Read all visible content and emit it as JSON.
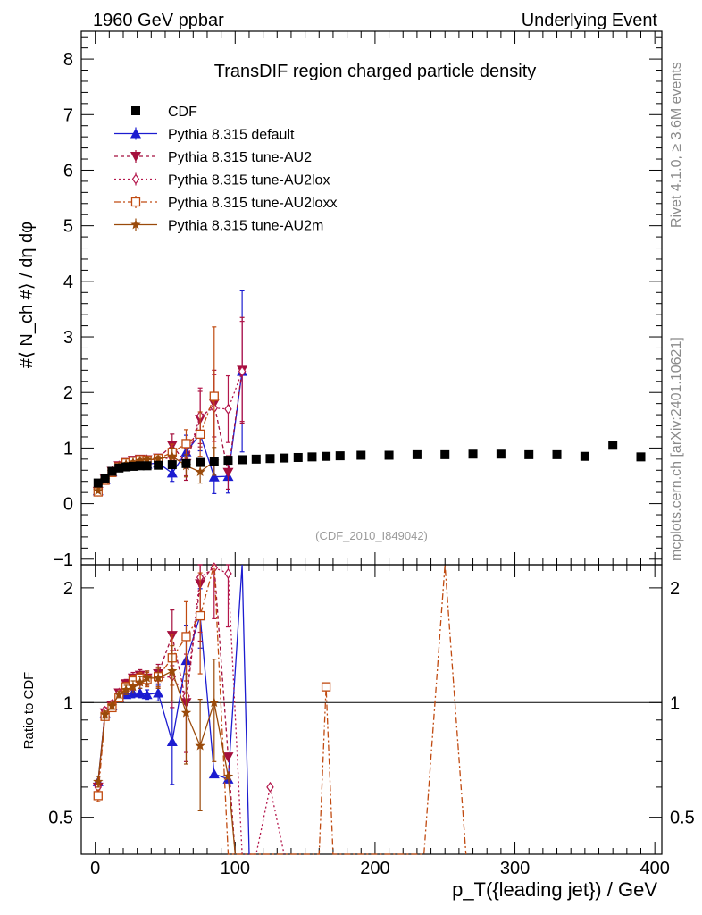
{
  "header": {
    "left": "1960 GeV ppbar",
    "right": "Underlying Event"
  },
  "side_labels": {
    "rivet": "Rivet 4.1.0, ≥ 3.6M events",
    "mcplots": "mcplots.cern.ch [arXiv:2401.10621]"
  },
  "chart_data": {
    "type": "line",
    "title": "TransDIF region charged particle density",
    "watermark": "(CDF_2010_I849042)",
    "xlabel": "p_T({leading jet}) / GeV",
    "ylabel_main": "#⟨ N_ch #⟩ / dη dφ",
    "ylabel_ratio": "Ratio to CDF",
    "xlim": [
      -10,
      405
    ],
    "ylim_main": [
      -1.1,
      8.5
    ],
    "ylim_ratio": [
      0.4,
      2.3
    ],
    "x_ticks": [
      "0",
      "100",
      "200",
      "300",
      "400"
    ],
    "y_ticks_main": [
      "−1",
      "0",
      "1",
      "2",
      "3",
      "4",
      "5",
      "6",
      "7",
      "8"
    ],
    "y_ticks_ratio": [
      "0.5",
      "1",
      "2"
    ],
    "legend": [
      {
        "key": "cdf",
        "label": "CDF"
      },
      {
        "key": "default",
        "label": "Pythia 8.315 default"
      },
      {
        "key": "au2",
        "label": "Pythia 8.315 tune-AU2"
      },
      {
        "key": "au2lox",
        "label": "Pythia 8.315 tune-AU2lox"
      },
      {
        "key": "au2loxx",
        "label": "Pythia 8.315 tune-AU2loxx"
      },
      {
        "key": "au2m",
        "label": "Pythia 8.315 tune-AU2m"
      }
    ],
    "data": {
      "x": [
        2,
        7,
        12,
        17,
        22,
        27,
        32,
        37,
        45,
        55,
        65,
        75,
        85,
        95,
        105,
        115,
        125,
        135,
        145,
        155,
        165,
        175,
        190,
        210,
        230,
        250,
        270,
        290,
        310,
        330,
        350,
        370,
        390
      ],
      "y": [
        0.37,
        0.46,
        0.58,
        0.64,
        0.66,
        0.67,
        0.68,
        0.68,
        0.69,
        0.7,
        0.72,
        0.74,
        0.76,
        0.78,
        0.79,
        0.8,
        0.81,
        0.82,
        0.83,
        0.84,
        0.85,
        0.86,
        0.87,
        0.87,
        0.88,
        0.88,
        0.89,
        0.89,
        0.88,
        0.88,
        0.85,
        1.05,
        0.84
      ]
    },
    "series": [
      {
        "key": "default",
        "name": "Pythia 8.315 default",
        "color": "#1c1cd0",
        "marker": "tri-up",
        "dash": "",
        "x": [
          2,
          7,
          12,
          17,
          22,
          27,
          32,
          37,
          45,
          55,
          65,
          75,
          85,
          95,
          105
        ],
        "y": [
          0.23,
          0.43,
          0.57,
          0.66,
          0.69,
          0.71,
          0.72,
          0.71,
          0.73,
          0.55,
          0.93,
          1.25,
          0.48,
          0.49,
          2.38
        ],
        "err": [
          0.02,
          0.02,
          0.02,
          0.02,
          0.03,
          0.03,
          0.04,
          0.04,
          0.05,
          0.15,
          0.3,
          0.3,
          0.3,
          0.3,
          1.45
        ]
      },
      {
        "key": "au2",
        "name": "Pythia 8.315 tune-AU2",
        "color": "#a50f3d",
        "marker": "tri-down",
        "dash": "4,3",
        "x": [
          2,
          7,
          12,
          17,
          22,
          27,
          32,
          37,
          45,
          55,
          65,
          75,
          85,
          95,
          105
        ],
        "y": [
          0.22,
          0.44,
          0.58,
          0.68,
          0.74,
          0.78,
          0.8,
          0.79,
          0.82,
          1.05,
          0.72,
          1.52,
          1.8,
          0.56,
          2.4
        ],
        "err": [
          0.02,
          0.02,
          0.02,
          0.02,
          0.03,
          0.03,
          0.04,
          0.04,
          0.05,
          0.2,
          0.3,
          0.5,
          0.6,
          0.3,
          0.95
        ]
      },
      {
        "key": "au2lox",
        "name": "Pythia 8.315 tune-AU2lox",
        "color": "#b4174c",
        "marker": "diamond",
        "dash": "2,3",
        "x": [
          2,
          7,
          12,
          17,
          22,
          27,
          32,
          37,
          45,
          55,
          65,
          75,
          85,
          95,
          105
        ],
        "y": [
          0.23,
          0.44,
          0.58,
          0.68,
          0.72,
          0.75,
          0.78,
          0.79,
          0.8,
          0.82,
          0.75,
          1.58,
          1.72,
          1.7,
          2.38
        ],
        "err": [
          0.02,
          0.02,
          0.02,
          0.02,
          0.03,
          0.03,
          0.04,
          0.04,
          0.05,
          0.15,
          0.25,
          0.5,
          0.6,
          0.6,
          0.9
        ]
      },
      {
        "key": "au2loxx",
        "name": "Pythia 8.315 tune-AU2loxx",
        "color": "#c04a10",
        "marker": "square-open",
        "dash": "7,3,2,3",
        "x": [
          2,
          7,
          12,
          17,
          22,
          27,
          32,
          37,
          45,
          55,
          65,
          75,
          85
        ],
        "y": [
          0.21,
          0.42,
          0.56,
          0.66,
          0.73,
          0.76,
          0.79,
          0.78,
          0.81,
          0.92,
          1.08,
          1.25,
          1.93
        ],
        "err": [
          0.02,
          0.02,
          0.02,
          0.02,
          0.03,
          0.03,
          0.04,
          0.04,
          0.05,
          0.15,
          0.25,
          0.4,
          1.25
        ]
      },
      {
        "key": "au2m",
        "name": "Pythia 8.315 tune-AU2m",
        "color": "#9a4a0a",
        "marker": "star",
        "dash": "",
        "x": [
          2,
          7,
          12,
          17,
          22,
          27,
          32,
          37,
          45,
          55,
          65,
          75,
          85
        ],
        "y": [
          0.23,
          0.43,
          0.57,
          0.67,
          0.71,
          0.74,
          0.77,
          0.79,
          0.8,
          0.85,
          0.68,
          0.57,
          0.76
        ],
        "err": [
          0.02,
          0.02,
          0.02,
          0.02,
          0.03,
          0.03,
          0.04,
          0.04,
          0.05,
          0.15,
          0.2,
          0.2,
          0.25
        ]
      }
    ],
    "ratio_series": [
      {
        "key": "default",
        "x": [
          2,
          7,
          12,
          17,
          22,
          27,
          32,
          37,
          45,
          55,
          65,
          75,
          85,
          95,
          105,
          110
        ],
        "y": [
          0.62,
          0.94,
          0.98,
          1.03,
          1.05,
          1.06,
          1.06,
          1.05,
          1.06,
          0.79,
          1.29,
          1.69,
          0.65,
          0.63,
          2.4,
          0.3
        ],
        "err": [
          0.02,
          0.02,
          0.02,
          0.02,
          0.02,
          0.03,
          0.03,
          0.03,
          0.05,
          0.18,
          0.3,
          0.3,
          0,
          0,
          0,
          0
        ]
      },
      {
        "key": "au2",
        "x": [
          2,
          7,
          12,
          17,
          22,
          27,
          32,
          37,
          45,
          55,
          65,
          75,
          85,
          95,
          100
        ],
        "y": [
          0.6,
          0.94,
          0.98,
          1.06,
          1.12,
          1.16,
          1.18,
          1.16,
          1.19,
          1.5,
          1.0,
          2.05,
          2.37,
          0.72,
          0.3
        ],
        "err": [
          0.02,
          0.02,
          0.02,
          0.02,
          0.03,
          0.04,
          0.04,
          0.05,
          0.07,
          0.25,
          0.3,
          0.6,
          0.6,
          0,
          0
        ]
      },
      {
        "key": "au2lox",
        "x": [
          2,
          7,
          12,
          17,
          22,
          27,
          32,
          37,
          45,
          55,
          65,
          75,
          85,
          95,
          105,
          115,
          125,
          135
        ],
        "y": [
          0.6,
          0.95,
          0.99,
          1.06,
          1.09,
          1.12,
          1.15,
          1.16,
          1.16,
          1.17,
          1.04,
          2.13,
          2.26,
          2.18,
          0.3,
          0.3,
          0.6,
          0.3
        ],
        "err": [
          0.02,
          0.02,
          0.02,
          0.02,
          0.03,
          0.04,
          0.04,
          0.05,
          0.07,
          0.2,
          0.3,
          0.6,
          0.6,
          0.6,
          0,
          0,
          0,
          0
        ]
      },
      {
        "key": "au2loxx",
        "x": [
          2,
          7,
          12,
          17,
          22,
          27,
          32,
          37,
          45,
          55,
          65,
          75,
          85,
          95,
          160,
          165,
          170,
          235,
          250,
          265
        ],
        "y": [
          0.57,
          0.92,
          0.97,
          1.03,
          1.1,
          1.14,
          1.16,
          1.15,
          1.17,
          1.31,
          1.49,
          1.69,
          2.54,
          0.3,
          0.3,
          1.1,
          0.3,
          0.3,
          2.3,
          0.3
        ],
        "err": [
          0.02,
          0.02,
          0.02,
          0.02,
          0.03,
          0.04,
          0.04,
          0.05,
          0.07,
          0.2,
          0.35,
          0.5,
          0,
          0,
          0,
          0,
          0,
          0,
          0,
          0
        ]
      },
      {
        "key": "au2m",
        "x": [
          2,
          7,
          12,
          17,
          22,
          27,
          32,
          37,
          45,
          55,
          65,
          75,
          85,
          95,
          100
        ],
        "y": [
          0.62,
          0.93,
          0.98,
          1.05,
          1.08,
          1.1,
          1.13,
          1.16,
          1.16,
          1.21,
          0.94,
          0.77,
          1.0,
          0.64,
          0.3
        ],
        "err": [
          0.02,
          0.02,
          0.02,
          0.02,
          0.03,
          0.04,
          0.04,
          0.05,
          0.07,
          0.2,
          0.25,
          0.25,
          0.3,
          0,
          0
        ]
      }
    ]
  }
}
